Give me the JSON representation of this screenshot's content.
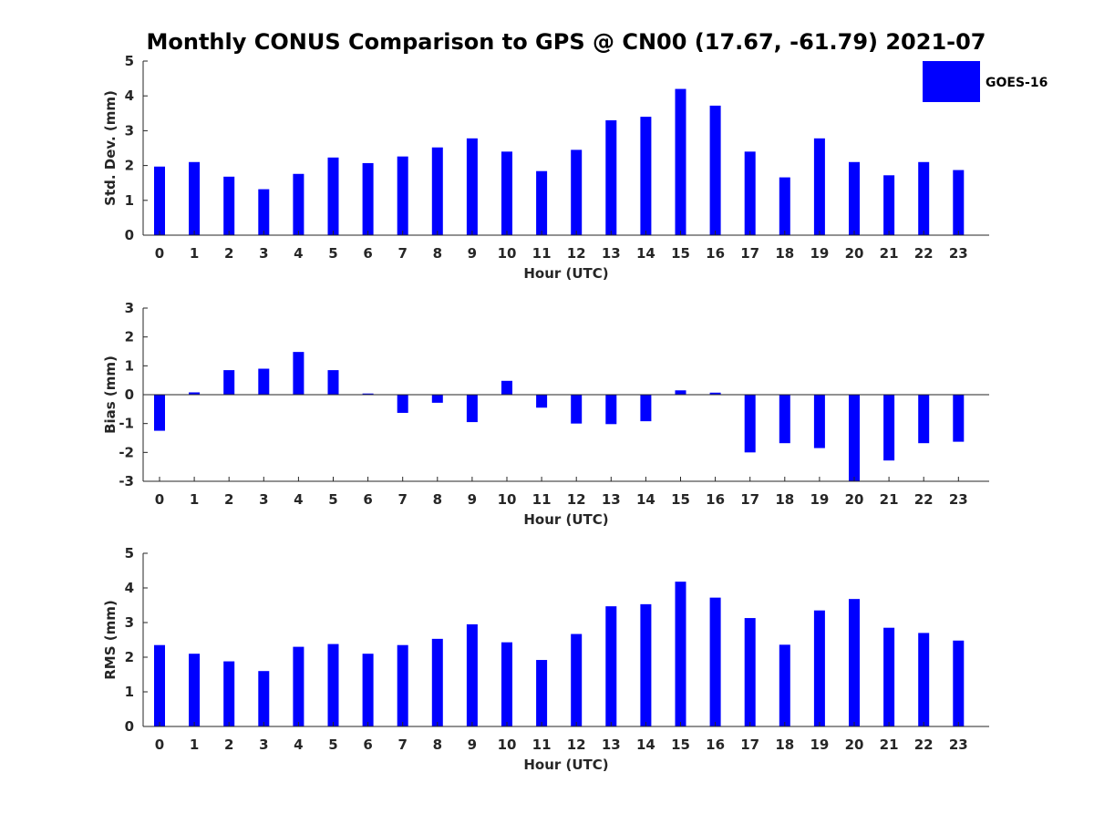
{
  "title": "Monthly CONUS Comparison to GPS @ CN00 (17.67, -61.79) 2021-07",
  "colors": {
    "bar": "#0000ff",
    "axis": "#262626",
    "background": "#ffffff"
  },
  "legend": {
    "label": "GOES-16",
    "placement": "top-right"
  },
  "chart_data": [
    {
      "type": "bar",
      "categories": [
        "0",
        "1",
        "2",
        "3",
        "4",
        "5",
        "6",
        "7",
        "8",
        "9",
        "10",
        "11",
        "12",
        "13",
        "14",
        "15",
        "16",
        "17",
        "18",
        "19",
        "20",
        "21",
        "22",
        "23"
      ],
      "series": [
        {
          "name": "GOES-16",
          "values": [
            1.97,
            2.1,
            1.68,
            1.32,
            1.76,
            2.23,
            2.07,
            2.26,
            2.52,
            2.78,
            2.4,
            1.84,
            2.45,
            3.3,
            3.4,
            4.2,
            3.72,
            2.4,
            1.66,
            2.78,
            2.1,
            1.72,
            2.1,
            1.87
          ]
        }
      ],
      "xlabel": "Hour (UTC)",
      "ylabel": "Std. Dev. (mm)",
      "ylim": [
        0,
        5
      ],
      "yticks": [
        0,
        1,
        2,
        3,
        4,
        5
      ],
      "grid": false
    },
    {
      "type": "bar",
      "categories": [
        "0",
        "1",
        "2",
        "3",
        "4",
        "5",
        "6",
        "7",
        "8",
        "9",
        "10",
        "11",
        "12",
        "13",
        "14",
        "15",
        "16",
        "17",
        "18",
        "19",
        "20",
        "21",
        "22",
        "23"
      ],
      "series": [
        {
          "name": "GOES-16",
          "values": [
            -1.25,
            0.08,
            0.85,
            0.9,
            1.48,
            0.85,
            0.04,
            -0.63,
            -0.28,
            -0.95,
            0.48,
            -0.45,
            -1.0,
            -1.02,
            -0.92,
            0.15,
            0.07,
            -2.0,
            -1.68,
            -1.85,
            -3.0,
            -2.28,
            -1.68,
            -1.63
          ]
        }
      ],
      "xlabel": "Hour (UTC)",
      "ylabel": "Bias (mm)",
      "ylim": [
        -3,
        3
      ],
      "yticks": [
        -3,
        -2,
        -1,
        0,
        1,
        2,
        3
      ],
      "grid": false,
      "zero_line": true
    },
    {
      "type": "bar",
      "categories": [
        "0",
        "1",
        "2",
        "3",
        "4",
        "5",
        "6",
        "7",
        "8",
        "9",
        "10",
        "11",
        "12",
        "13",
        "14",
        "15",
        "16",
        "17",
        "18",
        "19",
        "20",
        "21",
        "22",
        "23"
      ],
      "series": [
        {
          "name": "GOES-16",
          "values": [
            2.35,
            2.1,
            1.88,
            1.6,
            2.3,
            2.38,
            2.1,
            2.35,
            2.53,
            2.95,
            2.43,
            1.92,
            2.67,
            3.47,
            3.53,
            4.18,
            3.72,
            3.13,
            2.36,
            3.35,
            3.68,
            2.85,
            2.7,
            2.48
          ]
        }
      ],
      "xlabel": "Hour (UTC)",
      "ylabel": "RMS (mm)",
      "ylim": [
        0,
        5
      ],
      "yticks": [
        0,
        1,
        2,
        3,
        4,
        5
      ],
      "grid": false
    }
  ]
}
